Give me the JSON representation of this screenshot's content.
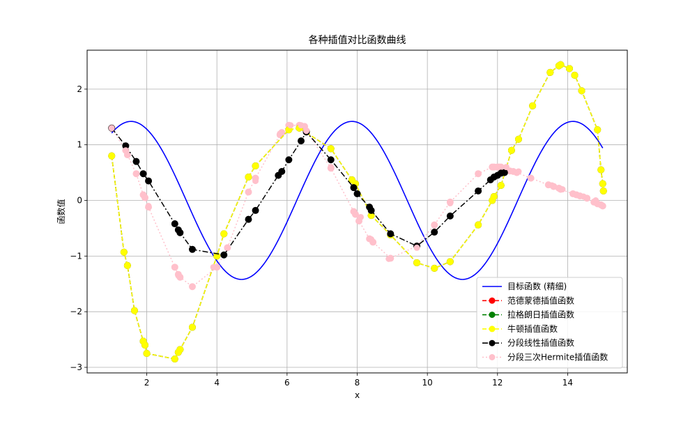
{
  "chart_data": {
    "type": "line",
    "title": "各种插值对比函数曲线",
    "xlabel": "x",
    "ylabel": "函数值",
    "xlim": [
      0.3,
      15.7
    ],
    "ylim": [
      -3.1,
      2.7
    ],
    "xticks": [
      2,
      4,
      6,
      8,
      10,
      12,
      14
    ],
    "yticks": [
      -3,
      -2,
      -1,
      0,
      1,
      2
    ],
    "xtick_labels": [
      "2",
      "4",
      "6",
      "8",
      "10",
      "12",
      "14"
    ],
    "ytick_labels": [
      "−3",
      "−2",
      "−1",
      "0",
      "1",
      "2"
    ],
    "grid": true,
    "legend_position": "lower-right",
    "target_function": {
      "name": "目标函数 (精细)",
      "color": "#0000ff",
      "x_range": [
        1,
        15
      ],
      "samples": 301
    },
    "sample_nodes": {
      "x": [
        1.0,
        1.4,
        1.7,
        1.9,
        2.05,
        2.8,
        2.9,
        3.3,
        3.9,
        4.3,
        4.9,
        5.1,
        5.8,
        6.1,
        6.4,
        6.55,
        7.25,
        7.9,
        8.1,
        8.4,
        8.9,
        9.7,
        10.2,
        10.65,
        11.45,
        11.95,
        12.25,
        12.6,
        12.95,
        13.55,
        13.85,
        14.15,
        14.45,
        14.8,
        15.0
      ],
      "y": [
        1.3,
        0.9,
        0.48,
        0.1,
        -0.1,
        -1.2,
        -1.35,
        -1.55,
        -1.2,
        -0.85,
        0.15,
        0.35,
        1.2,
        1.35,
        1.35,
        1.25,
        0.6,
        -0.2,
        -0.3,
        -0.7,
        -1.05,
        -0.85,
        -0.45,
        -0.05,
        0.48,
        0.6,
        0.6,
        0.52,
        0.4,
        0.27,
        0.2,
        0.12,
        0.07,
        0.0,
        -0.1
      ]
    },
    "series": [
      {
        "name": "范德蒙德插值函数",
        "color": "#ff0000",
        "style": "dashed",
        "marker": "circle",
        "legend_marker": true,
        "x": [
          1.0,
          1.35,
          1.45,
          1.65,
          1.9,
          1.95,
          2.0,
          2.8,
          2.9,
          2.95,
          3.3,
          4.0,
          4.2,
          4.9,
          5.1,
          6.05,
          6.35,
          7.25,
          7.85,
          7.95,
          8.4,
          8.95,
          9.7,
          10.2,
          10.65,
          11.45,
          11.85,
          11.9,
          12.1,
          12.4,
          12.6,
          13.0,
          13.5,
          13.75,
          13.8,
          14.05,
          14.2,
          14.4,
          14.85,
          14.95,
          15.0,
          15.02
        ],
        "y": [
          0.8,
          -0.93,
          -1.17,
          -1.98,
          -2.53,
          -2.6,
          -2.75,
          -2.85,
          -2.73,
          -2.68,
          -2.28,
          -1.0,
          -0.6,
          0.42,
          0.62,
          1.27,
          1.3,
          0.93,
          0.37,
          0.3,
          -0.27,
          -0.62,
          -1.12,
          -1.22,
          -1.1,
          -0.44,
          0.0,
          0.07,
          0.27,
          0.9,
          1.1,
          1.7,
          2.3,
          2.42,
          2.44,
          2.37,
          2.25,
          1.97,
          1.27,
          0.55,
          0.3,
          0.17
        ]
      },
      {
        "name": "拉格朗日插值函数",
        "color": "#008000",
        "style": "dashed",
        "marker": "circle",
        "legend_marker": true,
        "x": [
          1.0,
          1.35,
          1.45,
          1.65,
          1.9,
          1.95,
          2.0,
          2.8,
          2.9,
          2.95,
          3.3,
          4.0,
          4.2,
          4.9,
          5.1,
          6.05,
          6.35,
          7.25,
          7.85,
          7.95,
          8.4,
          8.95,
          9.7,
          10.2,
          10.65,
          11.45,
          11.85,
          11.9,
          12.1,
          12.4,
          12.6,
          13.0,
          13.5,
          13.75,
          13.8,
          14.05,
          14.2,
          14.4,
          14.85,
          14.95,
          15.0,
          15.02
        ],
        "y": [
          0.8,
          -0.93,
          -1.17,
          -1.98,
          -2.53,
          -2.6,
          -2.75,
          -2.85,
          -2.73,
          -2.68,
          -2.28,
          -1.0,
          -0.6,
          0.42,
          0.62,
          1.27,
          1.3,
          0.93,
          0.37,
          0.3,
          -0.27,
          -0.62,
          -1.12,
          -1.22,
          -1.1,
          -0.44,
          0.0,
          0.07,
          0.27,
          0.9,
          1.1,
          1.7,
          2.3,
          2.42,
          2.44,
          2.37,
          2.25,
          1.97,
          1.27,
          0.55,
          0.3,
          0.17
        ]
      },
      {
        "name": "牛顿插值函数",
        "color": "#ffff00",
        "style": "dashed",
        "marker": "circle",
        "legend_marker": true,
        "x": [
          1.0,
          1.35,
          1.45,
          1.65,
          1.9,
          1.95,
          2.0,
          2.8,
          2.9,
          2.95,
          3.3,
          4.0,
          4.2,
          4.9,
          5.1,
          6.05,
          6.35,
          7.25,
          7.85,
          7.95,
          8.4,
          8.95,
          9.7,
          10.2,
          10.65,
          11.45,
          11.85,
          11.9,
          12.1,
          12.4,
          12.6,
          13.0,
          13.5,
          13.75,
          13.8,
          14.05,
          14.2,
          14.4,
          14.85,
          14.95,
          15.0,
          15.02
        ],
        "y": [
          0.8,
          -0.93,
          -1.17,
          -1.98,
          -2.53,
          -2.6,
          -2.75,
          -2.85,
          -2.73,
          -2.68,
          -2.28,
          -1.0,
          -0.6,
          0.42,
          0.62,
          1.27,
          1.3,
          0.93,
          0.37,
          0.3,
          -0.27,
          -0.62,
          -1.12,
          -1.22,
          -1.1,
          -0.44,
          0.0,
          0.07,
          0.27,
          0.9,
          1.1,
          1.7,
          2.3,
          2.42,
          2.44,
          2.37,
          2.25,
          1.97,
          1.27,
          0.55,
          0.3,
          0.17
        ]
      },
      {
        "name": "分段线性插值函数",
        "color": "#000000",
        "style": "dashdot",
        "marker": "circle",
        "legend_marker": true,
        "x": [
          1.0,
          1.4,
          1.7,
          1.9,
          2.05,
          2.8,
          2.9,
          2.95,
          3.3,
          4.2,
          4.9,
          5.1,
          5.75,
          5.85,
          6.05,
          6.4,
          6.55,
          7.25,
          7.9,
          8.0,
          8.35,
          8.4,
          8.95,
          9.7,
          10.2,
          10.65,
          11.45,
          11.8,
          11.9,
          12.0,
          12.1,
          12.2
        ],
        "y": [
          1.3,
          0.98,
          0.7,
          0.48,
          0.35,
          -0.42,
          -0.53,
          -0.58,
          -0.88,
          -0.98,
          -0.34,
          -0.18,
          0.45,
          0.52,
          0.73,
          1.07,
          1.23,
          0.73,
          0.23,
          0.12,
          -0.12,
          -0.18,
          -0.6,
          -0.82,
          -0.57,
          -0.28,
          0.17,
          0.37,
          0.42,
          0.45,
          0.49,
          0.5
        ]
      },
      {
        "name": "分段三次Hermite插值函数",
        "color": "#ffc0cb",
        "style": "dotted",
        "marker": "circle",
        "legend_marker": true,
        "x": [
          1.0,
          1.4,
          1.45,
          1.7,
          1.9,
          1.95,
          2.05,
          2.8,
          2.9,
          2.95,
          3.3,
          4.0,
          4.3,
          4.9,
          5.1,
          5.8,
          5.85,
          6.05,
          6.35,
          6.5,
          6.55,
          7.25,
          7.9,
          7.95,
          8.05,
          8.35,
          8.45,
          8.95,
          9.7,
          10.2,
          10.65,
          11.45,
          11.85,
          11.9,
          12.0,
          12.05,
          12.1,
          12.35,
          12.45,
          12.55,
          12.95,
          13.45,
          13.6,
          13.75,
          13.8,
          14.15,
          14.25,
          14.35,
          14.55,
          14.75,
          14.85,
          14.95,
          15.0
        ],
        "y": [
          1.3,
          0.9,
          0.82,
          0.48,
          0.1,
          0.05,
          -0.12,
          -1.2,
          -1.33,
          -1.38,
          -1.55,
          -1.2,
          -0.85,
          0.15,
          0.4,
          1.18,
          1.22,
          1.35,
          1.35,
          1.33,
          1.25,
          0.58,
          -0.2,
          -0.25,
          -0.37,
          -0.69,
          -0.75,
          -1.04,
          -0.82,
          -0.44,
          -0.03,
          0.48,
          0.6,
          0.6,
          0.6,
          0.6,
          0.6,
          0.53,
          0.52,
          0.5,
          0.4,
          0.28,
          0.25,
          0.22,
          0.2,
          0.12,
          0.1,
          0.08,
          0.04,
          -0.03,
          -0.06,
          -0.08,
          -0.1
        ]
      }
    ]
  }
}
